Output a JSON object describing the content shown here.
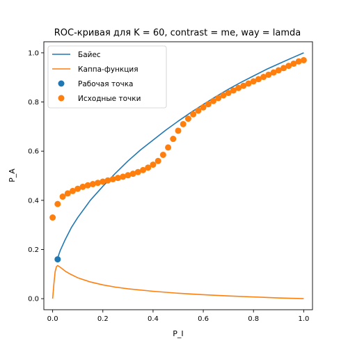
{
  "chart_data": {
    "type": "line",
    "title": "ROC-кривая для K = 60, contrast = me, way = lamda",
    "xlabel": "P_I",
    "ylabel": "P_A",
    "xlim": [
      -0.035,
      1.035
    ],
    "ylim": [
      -0.045,
      1.045
    ],
    "xticks": [
      "0.0",
      "0.2",
      "0.4",
      "0.6",
      "0.8",
      "1.0"
    ],
    "yticks": [
      "0.0",
      "0.2",
      "0.4",
      "0.6",
      "0.8",
      "1.0"
    ],
    "grid": false,
    "legend_position": "top-left",
    "colors": {
      "blue": "#1f77b4",
      "orange": "#ff7f0e"
    },
    "series": [
      {
        "name": "Байес",
        "kind": "line",
        "color": "#1f77b4",
        "x": [
          0.018,
          0.03,
          0.05,
          0.075,
          0.1,
          0.15,
          0.2,
          0.25,
          0.3,
          0.35,
          0.4,
          0.45,
          0.5,
          0.55,
          0.6,
          0.65,
          0.7,
          0.75,
          0.8,
          0.85,
          0.9,
          0.95,
          1.0
        ],
        "y": [
          0.16,
          0.195,
          0.24,
          0.29,
          0.33,
          0.4,
          0.457,
          0.51,
          0.56,
          0.605,
          0.645,
          0.685,
          0.722,
          0.757,
          0.79,
          0.822,
          0.852,
          0.88,
          0.906,
          0.932,
          0.955,
          0.978,
          1.0
        ]
      },
      {
        "name": "Каппа-функция",
        "kind": "line",
        "color": "#ff7f0e",
        "x": [
          0.0,
          0.005,
          0.01,
          0.015,
          0.02,
          0.03,
          0.05,
          0.07,
          0.1,
          0.15,
          0.2,
          0.25,
          0.3,
          0.4,
          0.5,
          0.6,
          0.7,
          0.8,
          0.9,
          1.0
        ],
        "y": [
          0.0,
          0.06,
          0.11,
          0.13,
          0.135,
          0.128,
          0.112,
          0.1,
          0.085,
          0.068,
          0.056,
          0.047,
          0.04,
          0.03,
          0.022,
          0.016,
          0.011,
          0.007,
          0.003,
          0.0
        ]
      },
      {
        "name": "Рабочая точка",
        "kind": "scatter",
        "color": "#1f77b4",
        "x": [
          0.02
        ],
        "y": [
          0.16
        ]
      },
      {
        "name": "Исходные точки",
        "kind": "scatter",
        "color": "#ff7f0e",
        "x": [
          0.0,
          0.02,
          0.04,
          0.06,
          0.08,
          0.1,
          0.12,
          0.14,
          0.16,
          0.18,
          0.2,
          0.22,
          0.24,
          0.26,
          0.28,
          0.3,
          0.32,
          0.34,
          0.36,
          0.38,
          0.4,
          0.42,
          0.44,
          0.46,
          0.48,
          0.5,
          0.52,
          0.54,
          0.56,
          0.58,
          0.6,
          0.62,
          0.64,
          0.66,
          0.68,
          0.7,
          0.72,
          0.74,
          0.76,
          0.78,
          0.8,
          0.82,
          0.84,
          0.86,
          0.88,
          0.9,
          0.92,
          0.94,
          0.96,
          0.98,
          1.0
        ],
        "y": [
          0.33,
          0.385,
          0.415,
          0.428,
          0.438,
          0.447,
          0.455,
          0.461,
          0.466,
          0.471,
          0.476,
          0.481,
          0.486,
          0.491,
          0.496,
          0.502,
          0.508,
          0.515,
          0.523,
          0.533,
          0.545,
          0.56,
          0.585,
          0.615,
          0.65,
          0.683,
          0.71,
          0.732,
          0.75,
          0.765,
          0.778,
          0.791,
          0.804,
          0.816,
          0.827,
          0.837,
          0.847,
          0.857,
          0.866,
          0.875,
          0.884,
          0.893,
          0.902,
          0.911,
          0.92,
          0.929,
          0.938,
          0.947,
          0.956,
          0.965,
          0.97
        ]
      }
    ]
  }
}
